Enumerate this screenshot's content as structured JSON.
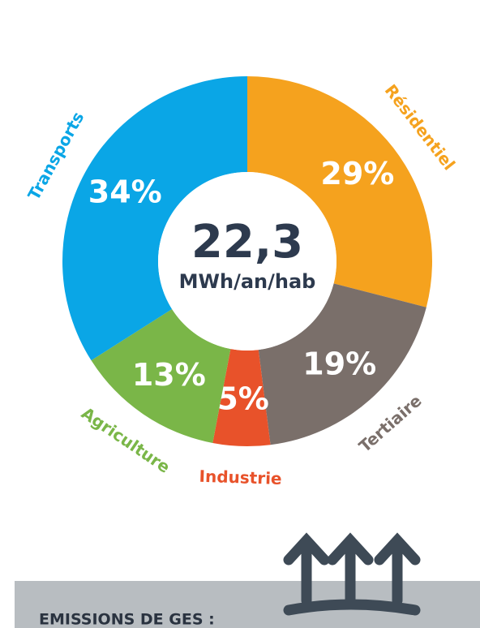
{
  "chart_data": {
    "type": "donut",
    "categories": [
      "Résidentiel",
      "Tertiaire",
      "Industrie",
      "Agriculture",
      "Transports"
    ],
    "values": [
      29,
      19,
      5,
      13,
      34
    ],
    "value_labels": [
      "29%",
      "19%",
      "5%",
      "13%",
      "34%"
    ],
    "colors": [
      "#f5a21e",
      "#7a6f6a",
      "#e8522a",
      "#7ab648",
      "#0aa6e6"
    ],
    "center_value": "22,3",
    "center_unit": "MWh/an/hab"
  },
  "footer": {
    "title": "EMISSIONS DE GES :"
  }
}
